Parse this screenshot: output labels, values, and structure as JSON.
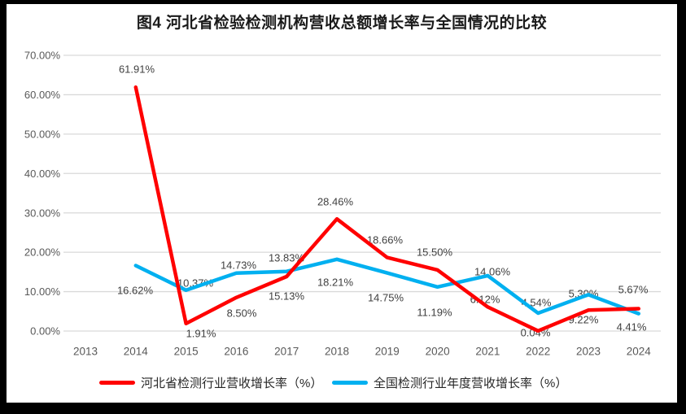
{
  "title": "图4 河北省检验检测机构营收总额增长率与全国情况的比较",
  "chart_data": {
    "type": "line",
    "categories": [
      "2013",
      "2014",
      "2015",
      "2016",
      "2017",
      "2018",
      "2019",
      "2020",
      "2021",
      "2022",
      "2023",
      "2024"
    ],
    "series": [
      {
        "name": "河北省检测行业营收增长率（%）",
        "color": "#FF0000",
        "values": [
          null,
          61.91,
          1.91,
          8.5,
          13.83,
          28.46,
          18.66,
          15.5,
          6.12,
          0.04,
          5.3,
          5.67
        ]
      },
      {
        "name": "全国检测行业年度营收增长率（%）",
        "color": "#00B0F0",
        "values": [
          null,
          16.62,
          10.37,
          14.73,
          15.13,
          18.21,
          14.75,
          11.19,
          14.06,
          4.54,
          9.22,
          4.41
        ]
      }
    ],
    "ylim": [
      0,
      70
    ],
    "yticks": [
      0,
      10,
      20,
      30,
      40,
      50,
      60,
      70
    ],
    "ytick_labels": [
      "0.00%",
      "10.00%",
      "20.00%",
      "30.00%",
      "40.00%",
      "50.00%",
      "60.00%",
      "70.00%"
    ],
    "xlabel": "",
    "ylabel": "",
    "grid": true,
    "legend_position": "bottom",
    "data_labels": true,
    "data_label_format": "0.00%"
  },
  "colors": {
    "frame": "#000000",
    "background": "#FFFFFF",
    "gridline": "#D9D9D9",
    "axis_text": "#595959",
    "data_label_text": "#404040",
    "legend_text": "#262626"
  }
}
